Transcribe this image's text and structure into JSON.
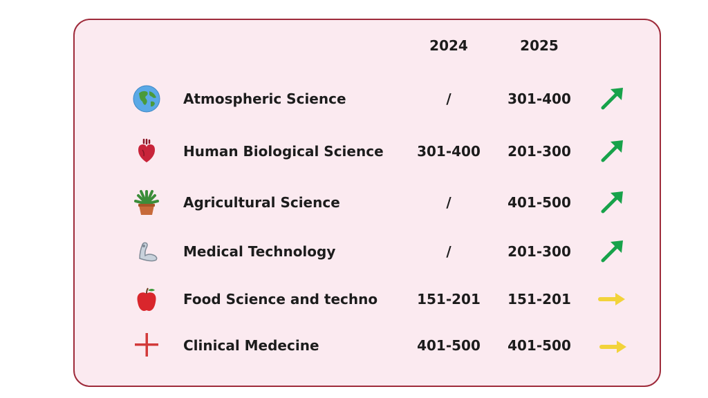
{
  "headers": {
    "year_2024": "2024",
    "year_2025": "2025"
  },
  "rows": [
    {
      "subject": "Atmospheric Science",
      "y2024": "/",
      "y2025": "301-400",
      "icon": "globe-icon",
      "trend": "up"
    },
    {
      "subject": "Human Biological Science",
      "y2024": "301-400",
      "y2025": "201-300",
      "icon": "heart-icon",
      "trend": "up"
    },
    {
      "subject": "Agricultural Science",
      "y2024": "/",
      "y2025": "401-500",
      "icon": "potted-plant-icon",
      "trend": "up"
    },
    {
      "subject": "Medical Technology",
      "y2024": "/",
      "y2025": "201-300",
      "icon": "prosthetic-arm-icon",
      "trend": "up"
    },
    {
      "subject": "Food Science and techno",
      "y2024": "151-201",
      "y2025": "151-201",
      "icon": "apple-icon",
      "trend": "flat"
    },
    {
      "subject": "Clinical Medecine",
      "y2024": "401-500",
      "y2025": "401-500",
      "icon": "cross-icon",
      "trend": "flat"
    }
  ],
  "colors": {
    "border": "#9e2a3a",
    "background": "#fbeaf0",
    "trend_up": "#17a24a",
    "trend_flat": "#f2d33a"
  }
}
